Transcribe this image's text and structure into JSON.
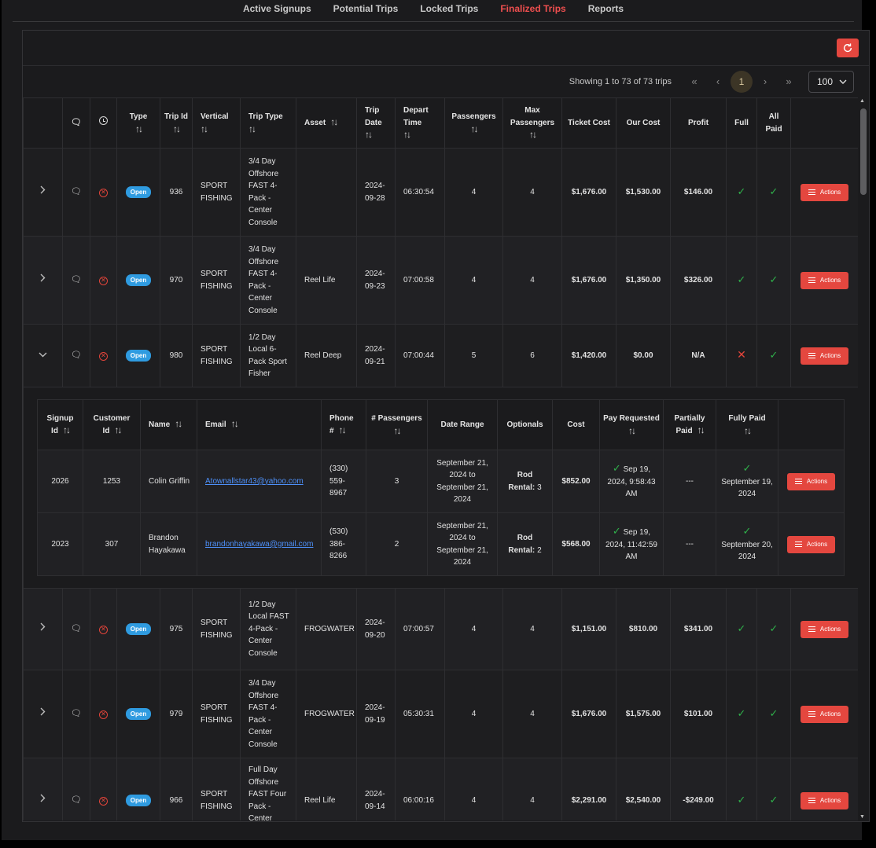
{
  "nav": {
    "tabs": [
      {
        "label": "Active Signups",
        "active": false
      },
      {
        "label": "Potential Trips",
        "active": false
      },
      {
        "label": "Locked Trips",
        "active": false
      },
      {
        "label": "Finalized Trips",
        "active": true
      },
      {
        "label": "Reports",
        "active": false
      }
    ]
  },
  "pager": {
    "showing": "Showing 1 to 73 of 73 trips",
    "first": "«",
    "prev": "‹",
    "current_page": "1",
    "next": "›",
    "last": "»",
    "page_size": "100"
  },
  "columns": {
    "type": "Type",
    "trip_id": "Trip Id",
    "vertical": "Vertical",
    "trip_type": "Trip Type",
    "asset": "Asset",
    "trip_date": "Trip Date",
    "depart_time": "Depart Time",
    "passengers": "Passengers",
    "max_passengers": "Max Passengers",
    "ticket_cost": "Ticket Cost",
    "our_cost": "Our Cost",
    "profit": "Profit",
    "full": "Full",
    "all_paid": "All Paid",
    "sort_glyph": "↑↓"
  },
  "trips": [
    {
      "expanded": false,
      "status": "Open",
      "trip_id": "936",
      "vertical": "SPORT FISHING",
      "trip_type": "3/4 Day Offshore FAST 4-Pack - Center Console",
      "asset": "",
      "trip_date": "2024-09-28",
      "depart_time": "06:30:54",
      "passengers": "4",
      "max_passengers": "4",
      "ticket_cost": "$1,676.00",
      "our_cost": "$1,530.00",
      "profit": "$146.00",
      "full": true,
      "all_paid": true,
      "actions": "Actions"
    },
    {
      "expanded": false,
      "status": "Open",
      "trip_id": "970",
      "vertical": "SPORT FISHING",
      "trip_type": "3/4 Day Offshore FAST 4-Pack - Center Console",
      "asset": "Reel Life",
      "trip_date": "2024-09-23",
      "depart_time": "07:00:58",
      "passengers": "4",
      "max_passengers": "4",
      "ticket_cost": "$1,676.00",
      "our_cost": "$1,350.00",
      "profit": "$326.00",
      "full": true,
      "all_paid": true,
      "actions": "Actions"
    },
    {
      "expanded": true,
      "status": "Open",
      "trip_id": "980",
      "vertical": "SPORT FISHING",
      "trip_type": "1/2 Day Local 6-Pack Sport Fisher",
      "asset": "Reel Deep",
      "trip_date": "2024-09-21",
      "depart_time": "07:00:44",
      "passengers": "5",
      "max_passengers": "6",
      "ticket_cost": "$1,420.00",
      "our_cost": "$0.00",
      "profit": "N/A",
      "full": false,
      "all_paid": true,
      "actions": "Actions"
    },
    {
      "expanded": false,
      "status": "Open",
      "trip_id": "975",
      "vertical": "SPORT FISHING",
      "trip_type": "1/2 Day Local FAST 4-Pack - Center Console",
      "asset": "FROGWATER",
      "trip_date": "2024-09-20",
      "depart_time": "07:00:57",
      "passengers": "4",
      "max_passengers": "4",
      "ticket_cost": "$1,151.00",
      "our_cost": "$810.00",
      "profit": "$341.00",
      "full": true,
      "all_paid": true,
      "actions": "Actions"
    },
    {
      "expanded": false,
      "status": "Open",
      "trip_id": "979",
      "vertical": "SPORT FISHING",
      "trip_type": "3/4 Day Offshore FAST 4-Pack - Center Console",
      "asset": "FROGWATER",
      "trip_date": "2024-09-19",
      "depart_time": "05:30:31",
      "passengers": "4",
      "max_passengers": "4",
      "ticket_cost": "$1,676.00",
      "our_cost": "$1,575.00",
      "profit": "$101.00",
      "full": true,
      "all_paid": true,
      "actions": "Actions"
    },
    {
      "expanded": false,
      "status": "Open",
      "trip_id": "966",
      "vertical": "SPORT FISHING",
      "trip_type": "Full Day Offshore FAST Four Pack - Center Console",
      "asset": "Reel Life",
      "trip_date": "2024-09-14",
      "depart_time": "06:00:16",
      "passengers": "4",
      "max_passengers": "4",
      "ticket_cost": "$2,291.00",
      "our_cost": "$2,540.00",
      "profit": "-$249.00",
      "full": true,
      "all_paid": true,
      "actions": "Actions"
    }
  ],
  "signup_columns": {
    "signup_id": "Signup Id",
    "customer_id": "Customer Id",
    "name": "Name",
    "email": "Email",
    "phone": "Phone #",
    "num_passengers": "# Passengers",
    "date_range": "Date Range",
    "optionals": "Optionals",
    "cost": "Cost",
    "pay_requested": "Pay Requested",
    "partially_paid": "Partially Paid",
    "fully_paid": "Fully Paid"
  },
  "signups": [
    {
      "signup_id": "2026",
      "customer_id": "1253",
      "name": "Colin Griffin",
      "email": "Atownallstar43@yahoo.com",
      "phone": "(330) 559-8967",
      "num_passengers": "3",
      "date_range": "September 21, 2024 to September 21, 2024",
      "optional_label": "Rod Rental:",
      "optional_value": "3",
      "cost": "$852.00",
      "pay_requested": "Sep 19, 2024, 9:58:43 AM",
      "partially_paid": "---",
      "fully_paid": "September 19, 2024",
      "actions": "Actions"
    },
    {
      "signup_id": "2023",
      "customer_id": "307",
      "name": "Brandon Hayakawa",
      "email": "brandonhayakawa@gmail.com",
      "phone": "(530) 386-8266",
      "num_passengers": "2",
      "date_range": "September 21, 2024 to September 21, 2024",
      "optional_label": "Rod Rental:",
      "optional_value": "2",
      "cost": "$568.00",
      "pay_requested": "Sep 19, 2024, 11:42:59 AM",
      "partially_paid": "---",
      "fully_paid": "September 20, 2024",
      "actions": "Actions"
    }
  ],
  "icons": {
    "chat": "chat-bubble-icon",
    "clock": "clock-icon",
    "cancel": "x-circle-icon",
    "refresh": "refresh-icon",
    "check": "check-icon",
    "cross": "x-icon",
    "menu": "menu-icon"
  },
  "colors": {
    "accent": "#e4473f",
    "active_tab": "#ef4f4f",
    "badge": "#2f9be0",
    "check": "#2fb14b",
    "link": "#4d8ff7"
  }
}
